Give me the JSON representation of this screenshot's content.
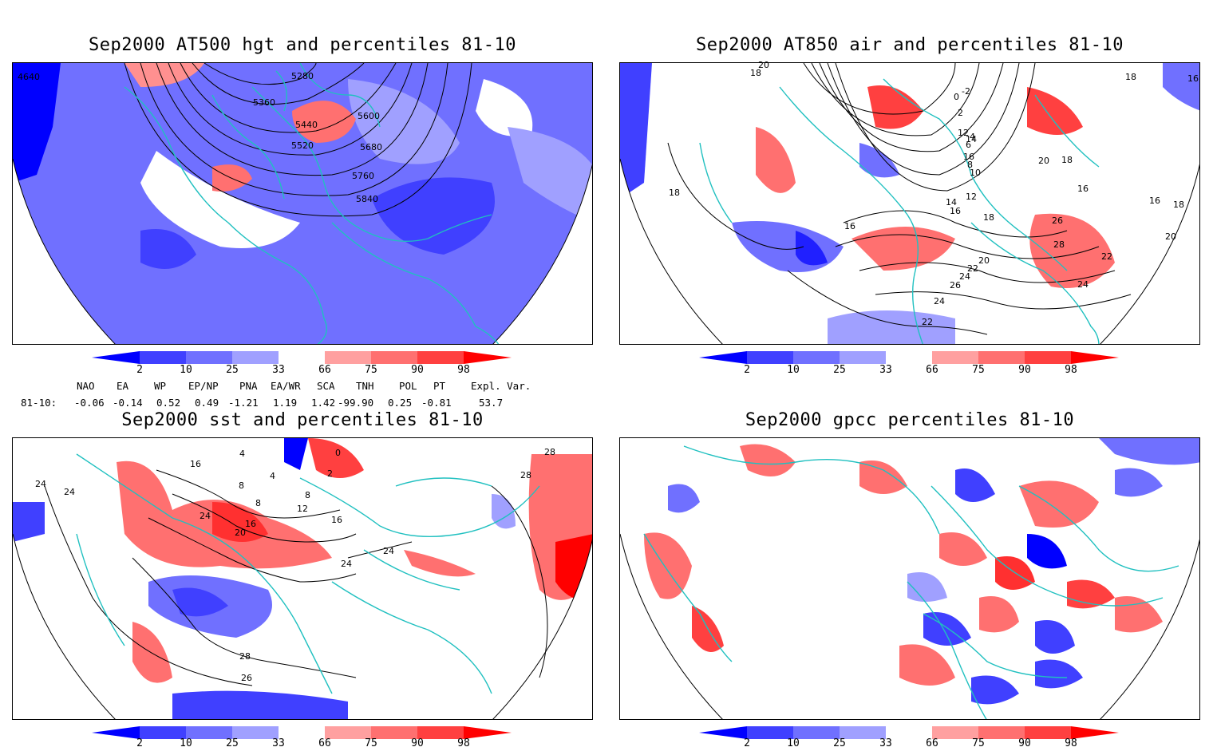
{
  "panels": [
    {
      "id": "p1",
      "title": "Sep2000 AT500 hgt and percentiles 81-10",
      "contour_labels": [
        "5280",
        "5360",
        "5440",
        "5520",
        "5600",
        "5680",
        "5760",
        "5840",
        "4640"
      ]
    },
    {
      "id": "p2",
      "title": "Sep2000 AT850 air and percentiles 81-10",
      "contour_labels": [
        "20",
        "18",
        "12",
        "14",
        "16",
        "16",
        "18",
        "-2",
        "0",
        "2",
        "4",
        "6",
        "8",
        "10",
        "12",
        "14",
        "16",
        "18",
        "20",
        "22",
        "24",
        "26",
        "24",
        "22",
        "20",
        "18",
        "16",
        "26",
        "28",
        "24",
        "22",
        "18",
        "16",
        "20",
        "18",
        "16"
      ]
    },
    {
      "id": "p3",
      "title": "Sep2000 sst and percentiles 81-10",
      "contour_labels": [
        "16",
        "4",
        "0",
        "2",
        "4",
        "8",
        "8",
        "8",
        "12",
        "16",
        "20",
        "24",
        "16",
        "24",
        "24",
        "28",
        "28",
        "28",
        "26",
        "24",
        "24"
      ]
    },
    {
      "id": "p4",
      "title": "Sep2000 gpcc percentiles 81-10",
      "contour_labels": []
    }
  ],
  "colorbar": {
    "ticks": [
      "2",
      "10",
      "25",
      "33",
      "66",
      "75",
      "90",
      "98"
    ],
    "colors": [
      "#0000ff",
      "#4040ff",
      "#7070ff",
      "#a0a0ff",
      "#ffffff",
      "#ffa0a0",
      "#ff7070",
      "#ff4040",
      "#ff0000"
    ]
  },
  "teleconnections": {
    "header": [
      "NAO",
      "EA",
      "WP",
      "EP/NP",
      "PNA",
      "EA/WR",
      "SCA",
      "TNH",
      "POL",
      "PT",
      "Expl. Var."
    ],
    "row_label": "81-10:",
    "values": [
      "-0.06",
      "-0.14",
      "0.52",
      "0.49",
      "-1.21",
      "1.19",
      "1.42",
      "-99.90",
      "0.25",
      "-0.81",
      "53.7"
    ]
  },
  "colors": {
    "coast": "#20c0c0",
    "contour": "#000000",
    "blue_mid": "#7070ff",
    "blue_dark": "#4040ff",
    "blue_deep": "#0000ff",
    "red_light": "#ffa0a0",
    "red_mid": "#ff7070",
    "red_deep": "#ff3030"
  }
}
